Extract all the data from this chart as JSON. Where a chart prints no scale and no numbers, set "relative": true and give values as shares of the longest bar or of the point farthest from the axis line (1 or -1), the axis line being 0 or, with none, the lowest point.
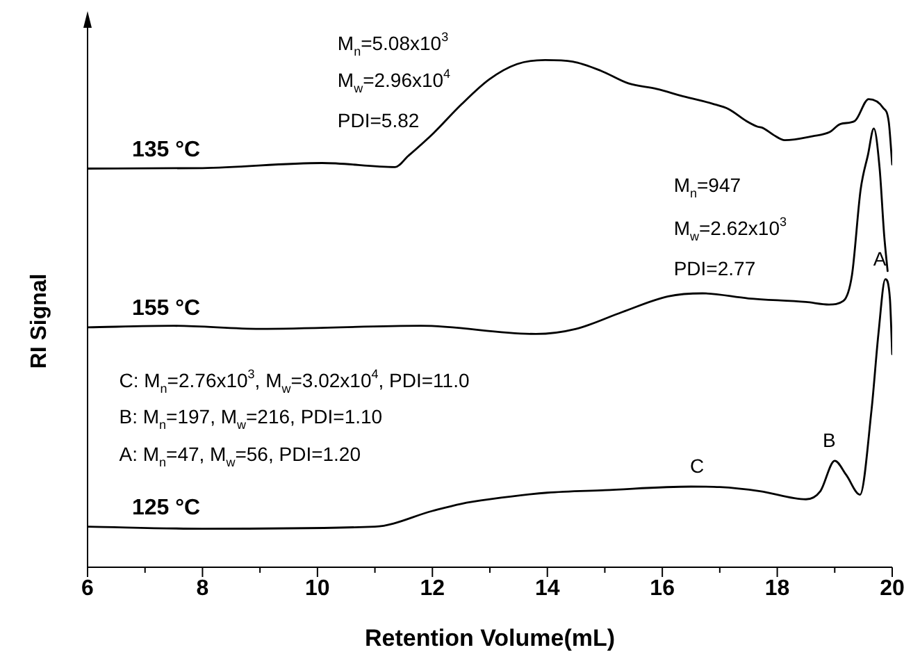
{
  "chart_data": {
    "type": "line",
    "relative": true,
    "xlabel": "Retention Volume(mL)",
    "ylabel": "RI Signal",
    "xlim": [
      6,
      20
    ],
    "xticks": [
      6,
      {
        "value": 7,
        "label": null
      },
      8,
      {
        "value": 9,
        "label": null
      },
      10,
      {
        "value": 11,
        "label": null
      },
      12,
      {
        "value": 13,
        "label": null
      },
      14,
      {
        "value": 15,
        "label": null
      },
      16,
      {
        "value": 17,
        "label": null
      },
      18,
      {
        "value": 19,
        "label": null
      },
      20
    ],
    "grid": false,
    "legend": false,
    "marker": "none",
    "line_style": "solid",
    "series": [
      {
        "name": "135 °C",
        "color": "#000000",
        "x": [
          6,
          8,
          10.08,
          11.35,
          11.58,
          12.02,
          12.5,
          12.99,
          13.47,
          13.96,
          14.44,
          14.93,
          15.41,
          15.9,
          16.38,
          16.87,
          17.16,
          17.46,
          17.65,
          17.75,
          17.94,
          18.13,
          18.62,
          18.91,
          19.1,
          19.35,
          19.59,
          19.84,
          19.94,
          20
        ],
        "values": [
          0.786,
          0.787,
          0.797,
          0.789,
          0.811,
          0.856,
          0.912,
          0.962,
          0.992,
          1,
          0.997,
          0.979,
          0.954,
          0.943,
          0.928,
          0.914,
          0.903,
          0.88,
          0.869,
          0.866,
          0.852,
          0.842,
          0.85,
          0.858,
          0.874,
          0.88,
          0.923,
          0.906,
          0.878,
          0.794
        ]
      },
      {
        "name": "155 °C",
        "color": "#000000",
        "x": [
          6,
          7.5,
          9,
          11.8,
          13.8,
          14.5,
          15.3,
          16.1,
          16.7,
          17.5,
          18.5,
          18.9,
          19.15,
          19.3,
          19.45,
          19.58,
          19.68,
          19.78,
          19.86,
          19.92
        ],
        "values": [
          0.473,
          0.476,
          0.47,
          0.476,
          0.46,
          0.47,
          0.503,
          0.534,
          0.54,
          0.53,
          0.523,
          0.518,
          0.525,
          0.576,
          0.744,
          0.814,
          0.865,
          0.788,
          0.655,
          0.584
        ]
      },
      {
        "name": "125 °C",
        "color": "#000000",
        "x": [
          6,
          8,
          11,
          12,
          12.5,
          13,
          14,
          15,
          16.5,
          17,
          17.7,
          18.5,
          18.75,
          19,
          19.2,
          19.44,
          19.64,
          19.76,
          19.88,
          19.96,
          20
        ],
        "values": [
          0.08,
          0.076,
          0.08,
          0.111,
          0.125,
          0.134,
          0.147,
          0.152,
          0.159,
          0.158,
          0.15,
          0.134,
          0.15,
          0.21,
          0.182,
          0.143,
          0.31,
          0.46,
          0.568,
          0.53,
          0.42
        ]
      }
    ],
    "annotations": [
      "M$_{n}$=5.08x10$^{3}$",
      "M$_{w}$=2.96x10$^{4}$",
      "PDI=5.82",
      "M$_{n}$=947",
      "M$_{w}$=2.62x10$^{3}$",
      "PDI=2.77",
      "C: M$_{n}$=2.76x10$^{3}$, M$_{w}$=3.02x10$^{4}$, PDI=11.0",
      "B: M$_{n}$=197, M$_{w}$=216, PDI=1.10",
      "A: M$_{n}$=47, M$_{w}$=56, PDI=1.20",
      {
        "text": "A",
        "x": 19.88,
        "y": 0.568
      },
      {
        "text": "B",
        "x": 19,
        "y": 0.21
      },
      {
        "text": "C",
        "x": 16.7,
        "y": 0.159
      }
    ]
  }
}
